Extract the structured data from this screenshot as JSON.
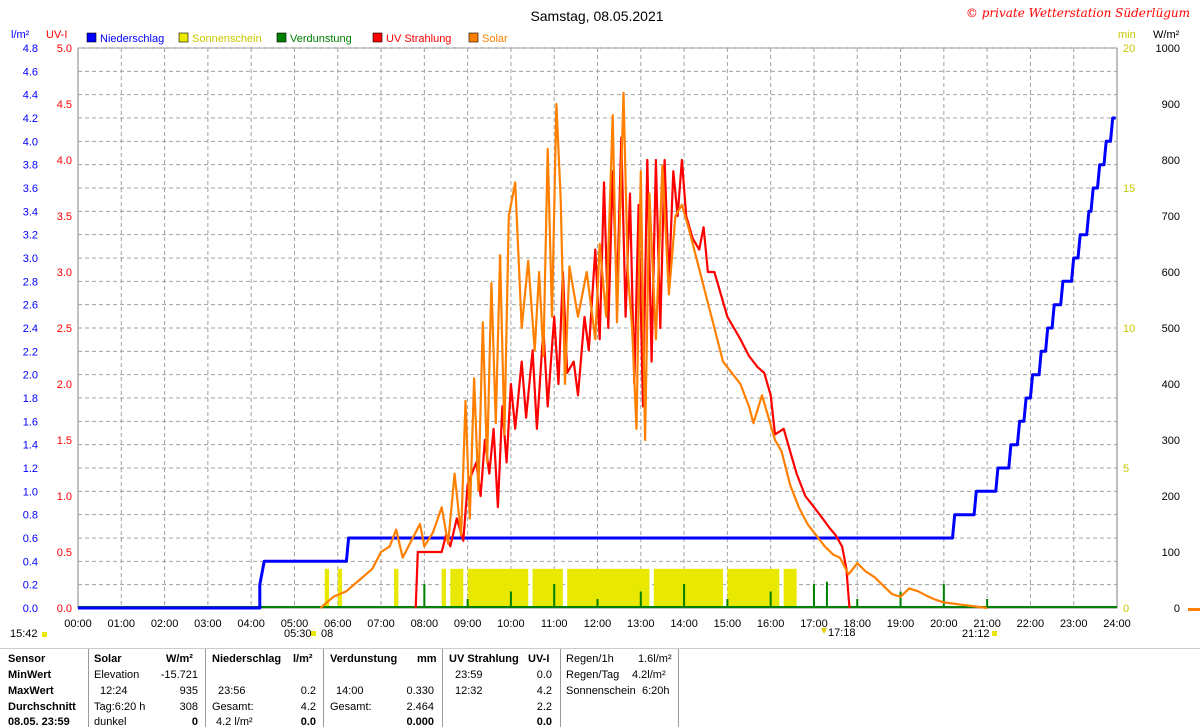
{
  "header": {
    "title": "Samstag, 08.05.2021",
    "copyright": "© private Wetterstation Süderlügum",
    "left_unit_1": "l/m²",
    "left_unit_2": "UV-I",
    "right_unit_1": "min",
    "right_unit_2": "W/m²"
  },
  "legend": [
    {
      "name": "Niederschlag",
      "color": "#0000ff"
    },
    {
      "name": "Sonnenschein",
      "color": "#e8e800"
    },
    {
      "name": "Verdunstung",
      "color": "#008000"
    },
    {
      "name": "UV Strahlung",
      "color": "#ff0000"
    },
    {
      "name": "Solar",
      "color": "#ff8000"
    }
  ],
  "markers": {
    "sunrise_time": "05:30",
    "sunrise_day": "08",
    "sunset_time": "21:12",
    "left_time": "15:42",
    "uv_marker": "17:18"
  },
  "chart_data": {
    "type": "line",
    "x_unit": "hours",
    "x_ticks": [
      "00:00",
      "01:00",
      "02:00",
      "03:00",
      "04:00",
      "05:00",
      "06:00",
      "07:00",
      "08:00",
      "09:00",
      "10:00",
      "11:00",
      "12:00",
      "13:00",
      "14:00",
      "15:00",
      "16:00",
      "17:00",
      "18:00",
      "19:00",
      "20:00",
      "21:00",
      "22:00",
      "23:00",
      "24:00"
    ],
    "xlim": [
      0,
      24
    ],
    "axes": {
      "rain": {
        "range": [
          0,
          4.8
        ],
        "ticks": [
          "0.0",
          "0.2",
          "0.4",
          "0.6",
          "0.8",
          "1.0",
          "1.2",
          "1.4",
          "1.6",
          "1.8",
          "2.0",
          "2.2",
          "2.4",
          "2.6",
          "2.8",
          "3.0",
          "3.2",
          "3.4",
          "3.6",
          "3.8",
          "4.0",
          "4.2",
          "4.4",
          "4.6",
          "4.8"
        ],
        "color": "#0000ff"
      },
      "uv": {
        "range": [
          0,
          5
        ],
        "ticks": [
          "0.0",
          "0.5",
          "1.0",
          "1.5",
          "2.0",
          "2.5",
          "3.0",
          "3.5",
          "4.0",
          "4.5",
          "5.0"
        ],
        "color": "#ff0000"
      },
      "minutes": {
        "range": [
          0,
          20
        ],
        "ticks": [
          "0",
          "5",
          "10",
          "15",
          "20"
        ],
        "color": "#c8c800"
      },
      "solar": {
        "range": [
          0,
          1000
        ],
        "ticks": [
          "0",
          "100",
          "200",
          "300",
          "400",
          "500",
          "600",
          "700",
          "800",
          "900",
          "1000"
        ],
        "color": "#000000"
      }
    },
    "grid": true,
    "series": [
      {
        "name": "Niederschlag",
        "axis": "rain",
        "color": "#0000ff",
        "step": true,
        "points": [
          [
            0,
            0
          ],
          [
            4.2,
            0
          ],
          [
            4.2,
            0.2
          ],
          [
            4.3,
            0.4
          ],
          [
            6.2,
            0.4
          ],
          [
            6.25,
            0.6
          ],
          [
            20.2,
            0.6
          ],
          [
            20.25,
            0.8
          ],
          [
            20.7,
            0.8
          ],
          [
            20.75,
            1.0
          ],
          [
            21.2,
            1.0
          ],
          [
            21.25,
            1.2
          ],
          [
            21.5,
            1.2
          ],
          [
            21.55,
            1.4
          ],
          [
            21.7,
            1.4
          ],
          [
            21.75,
            1.6
          ],
          [
            21.85,
            1.6
          ],
          [
            21.9,
            1.8
          ],
          [
            22.0,
            1.8
          ],
          [
            22.05,
            2.0
          ],
          [
            22.2,
            2.0
          ],
          [
            22.25,
            2.2
          ],
          [
            22.35,
            2.2
          ],
          [
            22.4,
            2.4
          ],
          [
            22.5,
            2.4
          ],
          [
            22.55,
            2.6
          ],
          [
            22.7,
            2.6
          ],
          [
            22.75,
            2.8
          ],
          [
            22.95,
            2.8
          ],
          [
            23.0,
            3.0
          ],
          [
            23.1,
            3.0
          ],
          [
            23.15,
            3.2
          ],
          [
            23.3,
            3.2
          ],
          [
            23.35,
            3.4
          ],
          [
            23.4,
            3.4
          ],
          [
            23.45,
            3.6
          ],
          [
            23.55,
            3.6
          ],
          [
            23.6,
            3.8
          ],
          [
            23.7,
            3.8
          ],
          [
            23.75,
            4.0
          ],
          [
            23.85,
            4.0
          ],
          [
            23.9,
            4.2
          ],
          [
            23.97,
            4.2
          ]
        ]
      },
      {
        "name": "UV Strahlung",
        "axis": "uv",
        "color": "#ff0000",
        "points": [
          [
            7.8,
            0
          ],
          [
            7.85,
            0.5
          ],
          [
            8.2,
            0.5
          ],
          [
            8.4,
            0.5
          ],
          [
            8.5,
            0.65
          ],
          [
            8.6,
            0.55
          ],
          [
            8.75,
            0.8
          ],
          [
            8.9,
            0.6
          ],
          [
            9.0,
            1.1
          ],
          [
            9.2,
            1.3
          ],
          [
            9.3,
            1.0
          ],
          [
            9.4,
            1.5
          ],
          [
            9.5,
            1.2
          ],
          [
            9.6,
            1.6
          ],
          [
            9.7,
            0.9
          ],
          [
            9.8,
            1.8
          ],
          [
            9.9,
            1.3
          ],
          [
            10.0,
            2.0
          ],
          [
            10.1,
            1.6
          ],
          [
            10.25,
            2.2
          ],
          [
            10.35,
            1.7
          ],
          [
            10.5,
            2.3
          ],
          [
            10.6,
            1.6
          ],
          [
            10.75,
            2.5
          ],
          [
            10.85,
            1.8
          ],
          [
            11.0,
            2.6
          ],
          [
            11.1,
            2.0
          ],
          [
            11.2,
            3.0
          ],
          [
            11.3,
            2.1
          ],
          [
            11.45,
            2.2
          ],
          [
            11.55,
            1.9
          ],
          [
            11.7,
            2.6
          ],
          [
            11.8,
            2.3
          ],
          [
            11.95,
            3.2
          ],
          [
            12.05,
            2.4
          ],
          [
            12.15,
            3.8
          ],
          [
            12.25,
            2.5
          ],
          [
            12.35,
            3.9
          ],
          [
            12.45,
            2.8
          ],
          [
            12.55,
            4.2
          ],
          [
            12.65,
            2.6
          ],
          [
            12.75,
            3.7
          ],
          [
            12.85,
            2.0
          ],
          [
            12.95,
            3.6
          ],
          [
            13.05,
            1.8
          ],
          [
            13.15,
            4.0
          ],
          [
            13.25,
            2.2
          ],
          [
            13.35,
            4.0
          ],
          [
            13.45,
            2.5
          ],
          [
            13.55,
            4.0
          ],
          [
            13.65,
            2.9
          ],
          [
            13.75,
            3.9
          ],
          [
            13.85,
            3.5
          ],
          [
            13.95,
            4.0
          ],
          [
            14.05,
            3.5
          ],
          [
            14.2,
            3.3
          ],
          [
            14.35,
            3.2
          ],
          [
            14.45,
            3.4
          ],
          [
            14.55,
            3.0
          ],
          [
            14.7,
            3.0
          ],
          [
            14.85,
            2.8
          ],
          [
            15.0,
            2.6
          ],
          [
            15.15,
            2.5
          ],
          [
            15.3,
            2.4
          ],
          [
            15.5,
            2.25
          ],
          [
            15.7,
            2.15
          ],
          [
            15.85,
            2.1
          ],
          [
            16.0,
            1.9
          ],
          [
            16.1,
            1.55
          ],
          [
            16.3,
            1.6
          ],
          [
            16.45,
            1.4
          ],
          [
            16.6,
            1.2
          ],
          [
            16.8,
            1.0
          ],
          [
            17.0,
            0.9
          ],
          [
            17.2,
            0.8
          ],
          [
            17.35,
            0.72
          ],
          [
            17.5,
            0.65
          ],
          [
            17.65,
            0.55
          ],
          [
            17.75,
            0.35
          ],
          [
            17.8,
            0.1
          ],
          [
            17.82,
            0
          ]
        ]
      },
      {
        "name": "Solar",
        "axis": "solar",
        "color": "#ff8000",
        "points": [
          [
            5.6,
            0
          ],
          [
            5.9,
            20
          ],
          [
            6.2,
            30
          ],
          [
            6.5,
            50
          ],
          [
            6.8,
            70
          ],
          [
            7.0,
            100
          ],
          [
            7.2,
            110
          ],
          [
            7.35,
            140
          ],
          [
            7.5,
            90
          ],
          [
            7.7,
            120
          ],
          [
            7.9,
            150
          ],
          [
            8.0,
            110
          ],
          [
            8.2,
            135
          ],
          [
            8.4,
            180
          ],
          [
            8.55,
            115
          ],
          [
            8.7,
            240
          ],
          [
            8.85,
            130
          ],
          [
            8.95,
            370
          ],
          [
            9.05,
            160
          ],
          [
            9.15,
            410
          ],
          [
            9.25,
            210
          ],
          [
            9.35,
            510
          ],
          [
            9.45,
            260
          ],
          [
            9.55,
            580
          ],
          [
            9.65,
            330
          ],
          [
            9.75,
            630
          ],
          [
            9.85,
            310
          ],
          [
            9.95,
            700
          ],
          [
            10.1,
            760
          ],
          [
            10.25,
            500
          ],
          [
            10.4,
            620
          ],
          [
            10.55,
            460
          ],
          [
            10.65,
            600
          ],
          [
            10.75,
            450
          ],
          [
            10.85,
            820
          ],
          [
            10.95,
            520
          ],
          [
            11.05,
            900
          ],
          [
            11.15,
            730
          ],
          [
            11.25,
            400
          ],
          [
            11.35,
            610
          ],
          [
            11.55,
            520
          ],
          [
            11.75,
            600
          ],
          [
            11.95,
            480
          ],
          [
            12.05,
            650
          ],
          [
            12.2,
            520
          ],
          [
            12.35,
            880
          ],
          [
            12.45,
            510
          ],
          [
            12.6,
            920
          ],
          [
            12.7,
            600
          ],
          [
            12.8,
            500
          ],
          [
            12.9,
            320
          ],
          [
            13.0,
            780
          ],
          [
            13.1,
            300
          ],
          [
            13.2,
            740
          ],
          [
            13.35,
            480
          ],
          [
            13.5,
            790
          ],
          [
            13.65,
            560
          ],
          [
            13.8,
            700
          ],
          [
            13.95,
            720
          ],
          [
            14.1,
            680
          ],
          [
            14.3,
            620
          ],
          [
            14.5,
            560
          ],
          [
            14.7,
            500
          ],
          [
            14.9,
            440
          ],
          [
            15.1,
            420
          ],
          [
            15.3,
            400
          ],
          [
            15.5,
            360
          ],
          [
            15.6,
            330
          ],
          [
            15.8,
            380
          ],
          [
            15.95,
            340
          ],
          [
            16.1,
            300
          ],
          [
            16.25,
            280
          ],
          [
            16.45,
            220
          ],
          [
            16.65,
            180
          ],
          [
            16.85,
            150
          ],
          [
            17.05,
            130
          ],
          [
            17.25,
            110
          ],
          [
            17.45,
            95
          ],
          [
            17.6,
            90
          ],
          [
            17.8,
            60
          ],
          [
            18.0,
            80
          ],
          [
            18.2,
            65
          ],
          [
            18.4,
            55
          ],
          [
            18.6,
            40
          ],
          [
            18.8,
            25
          ],
          [
            19.0,
            20
          ],
          [
            19.2,
            35
          ],
          [
            19.4,
            30
          ],
          [
            19.6,
            22
          ],
          [
            19.8,
            15
          ],
          [
            20.0,
            10
          ],
          [
            20.2,
            8
          ],
          [
            20.5,
            5
          ],
          [
            20.8,
            2
          ],
          [
            21.0,
            0
          ]
        ]
      },
      {
        "name": "Sonnenschein",
        "axis": "minutes",
        "color": "#e8e800",
        "kind": "bars",
        "ranges": [
          [
            5.7,
            5.8,
            1.0
          ],
          [
            6.0,
            6.1,
            1.0
          ],
          [
            7.3,
            7.4,
            1.0
          ],
          [
            8.4,
            8.5,
            1.0
          ],
          [
            8.6,
            8.9,
            1.0
          ],
          [
            9.0,
            10.4,
            1.0
          ],
          [
            10.5,
            11.2,
            1.0
          ],
          [
            11.3,
            13.2,
            1.0
          ],
          [
            13.3,
            14.9,
            1.0
          ],
          [
            15.0,
            16.2,
            1.0
          ],
          [
            16.3,
            16.6,
            1.0
          ]
        ]
      },
      {
        "name": "Verdunstung",
        "axis": "minutes",
        "color": "#008000",
        "kind": "spikes",
        "x": [
          8.0,
          9.0,
          10.0,
          11.0,
          12.0,
          13.0,
          14.0,
          15.0,
          16.0,
          17.0,
          17.3,
          18.0,
          19.0,
          20.0,
          21.0
        ]
      }
    ]
  },
  "table": {
    "row_labels": [
      "Sensor",
      "MinWert",
      "MaxWert",
      "Durchschnitt",
      "08.05. 23:59"
    ],
    "solar": {
      "header": "Solar",
      "unit": "W/m²",
      "rows": [
        [
          "Elevation",
          "-15.721"
        ],
        [
          "12:24",
          "935"
        ],
        [
          "Tag:6:20 h",
          "308"
        ],
        [
          "dunkel",
          "0"
        ]
      ]
    },
    "rain": {
      "header": "Niederschlag",
      "unit": "l/m²",
      "rows": [
        [
          "",
          ""
        ],
        [
          "23:56",
          "0.2"
        ],
        [
          "Gesamt:",
          "4.2"
        ],
        [
          "4.2 l/m²",
          "0.0"
        ]
      ]
    },
    "evap": {
      "header": "Verdunstung",
      "unit": "mm",
      "rows": [
        [
          "",
          ""
        ],
        [
          "14:00",
          "0.330"
        ],
        [
          "Gesamt:",
          "2.464"
        ],
        [
          "",
          "0.000"
        ]
      ]
    },
    "uv": {
      "header": "UV Strahlung",
      "unit": "UV-I",
      "rows": [
        [
          "23:59",
          "0.0"
        ],
        [
          "12:32",
          "4.2"
        ],
        [
          "",
          "2.2"
        ],
        [
          "",
          "0.0"
        ]
      ]
    },
    "summary": [
      {
        "label": "Regen/1h",
        "value": "1.6l/m²"
      },
      {
        "label": "Regen/Tag",
        "value": "4.2l/m²"
      },
      {
        "label": "Sonnenschein",
        "value": "6:20h"
      }
    ]
  }
}
